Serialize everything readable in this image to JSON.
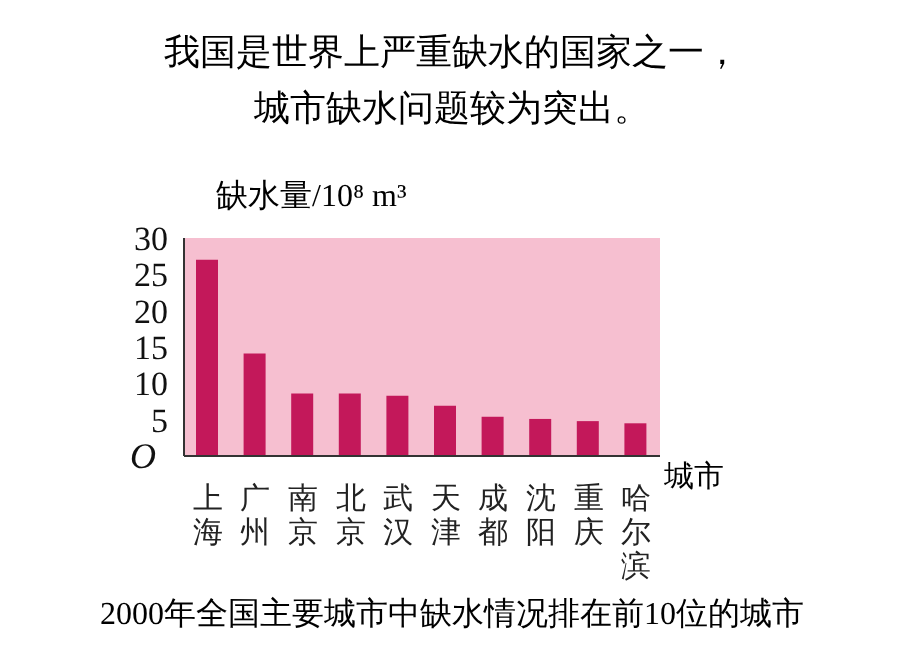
{
  "chart_data": {
    "type": "bar",
    "title": "我国是世界上严重缺水的国家之一，",
    "subtitle": "城市缺水问题较为突出。",
    "ylabel": "缺水量/10⁸ m³",
    "xlabel": "城市",
    "categories": [
      "上海",
      "广州",
      "南京",
      "北京",
      "武汉",
      "天津",
      "成都",
      "沈阳",
      "重庆",
      "哈尔滨"
    ],
    "values": [
      27,
      14.1,
      8.6,
      8.6,
      8.3,
      6.9,
      5.4,
      5.1,
      4.8,
      4.5
    ],
    "color": "#c3185a",
    "ylim": [
      0,
      30
    ],
    "yticks": [
      {
        "value": 0,
        "label": "O"
      },
      5,
      10,
      15,
      20,
      25,
      30
    ],
    "bands": [
      {
        "axis": "y",
        "from": 0,
        "to": 30,
        "color": "#f6bfd0"
      }
    ],
    "annotations": [
      "2000年全国主要城市中缺水情况排在前10位的城市"
    ],
    "legend": false,
    "grid": false
  }
}
